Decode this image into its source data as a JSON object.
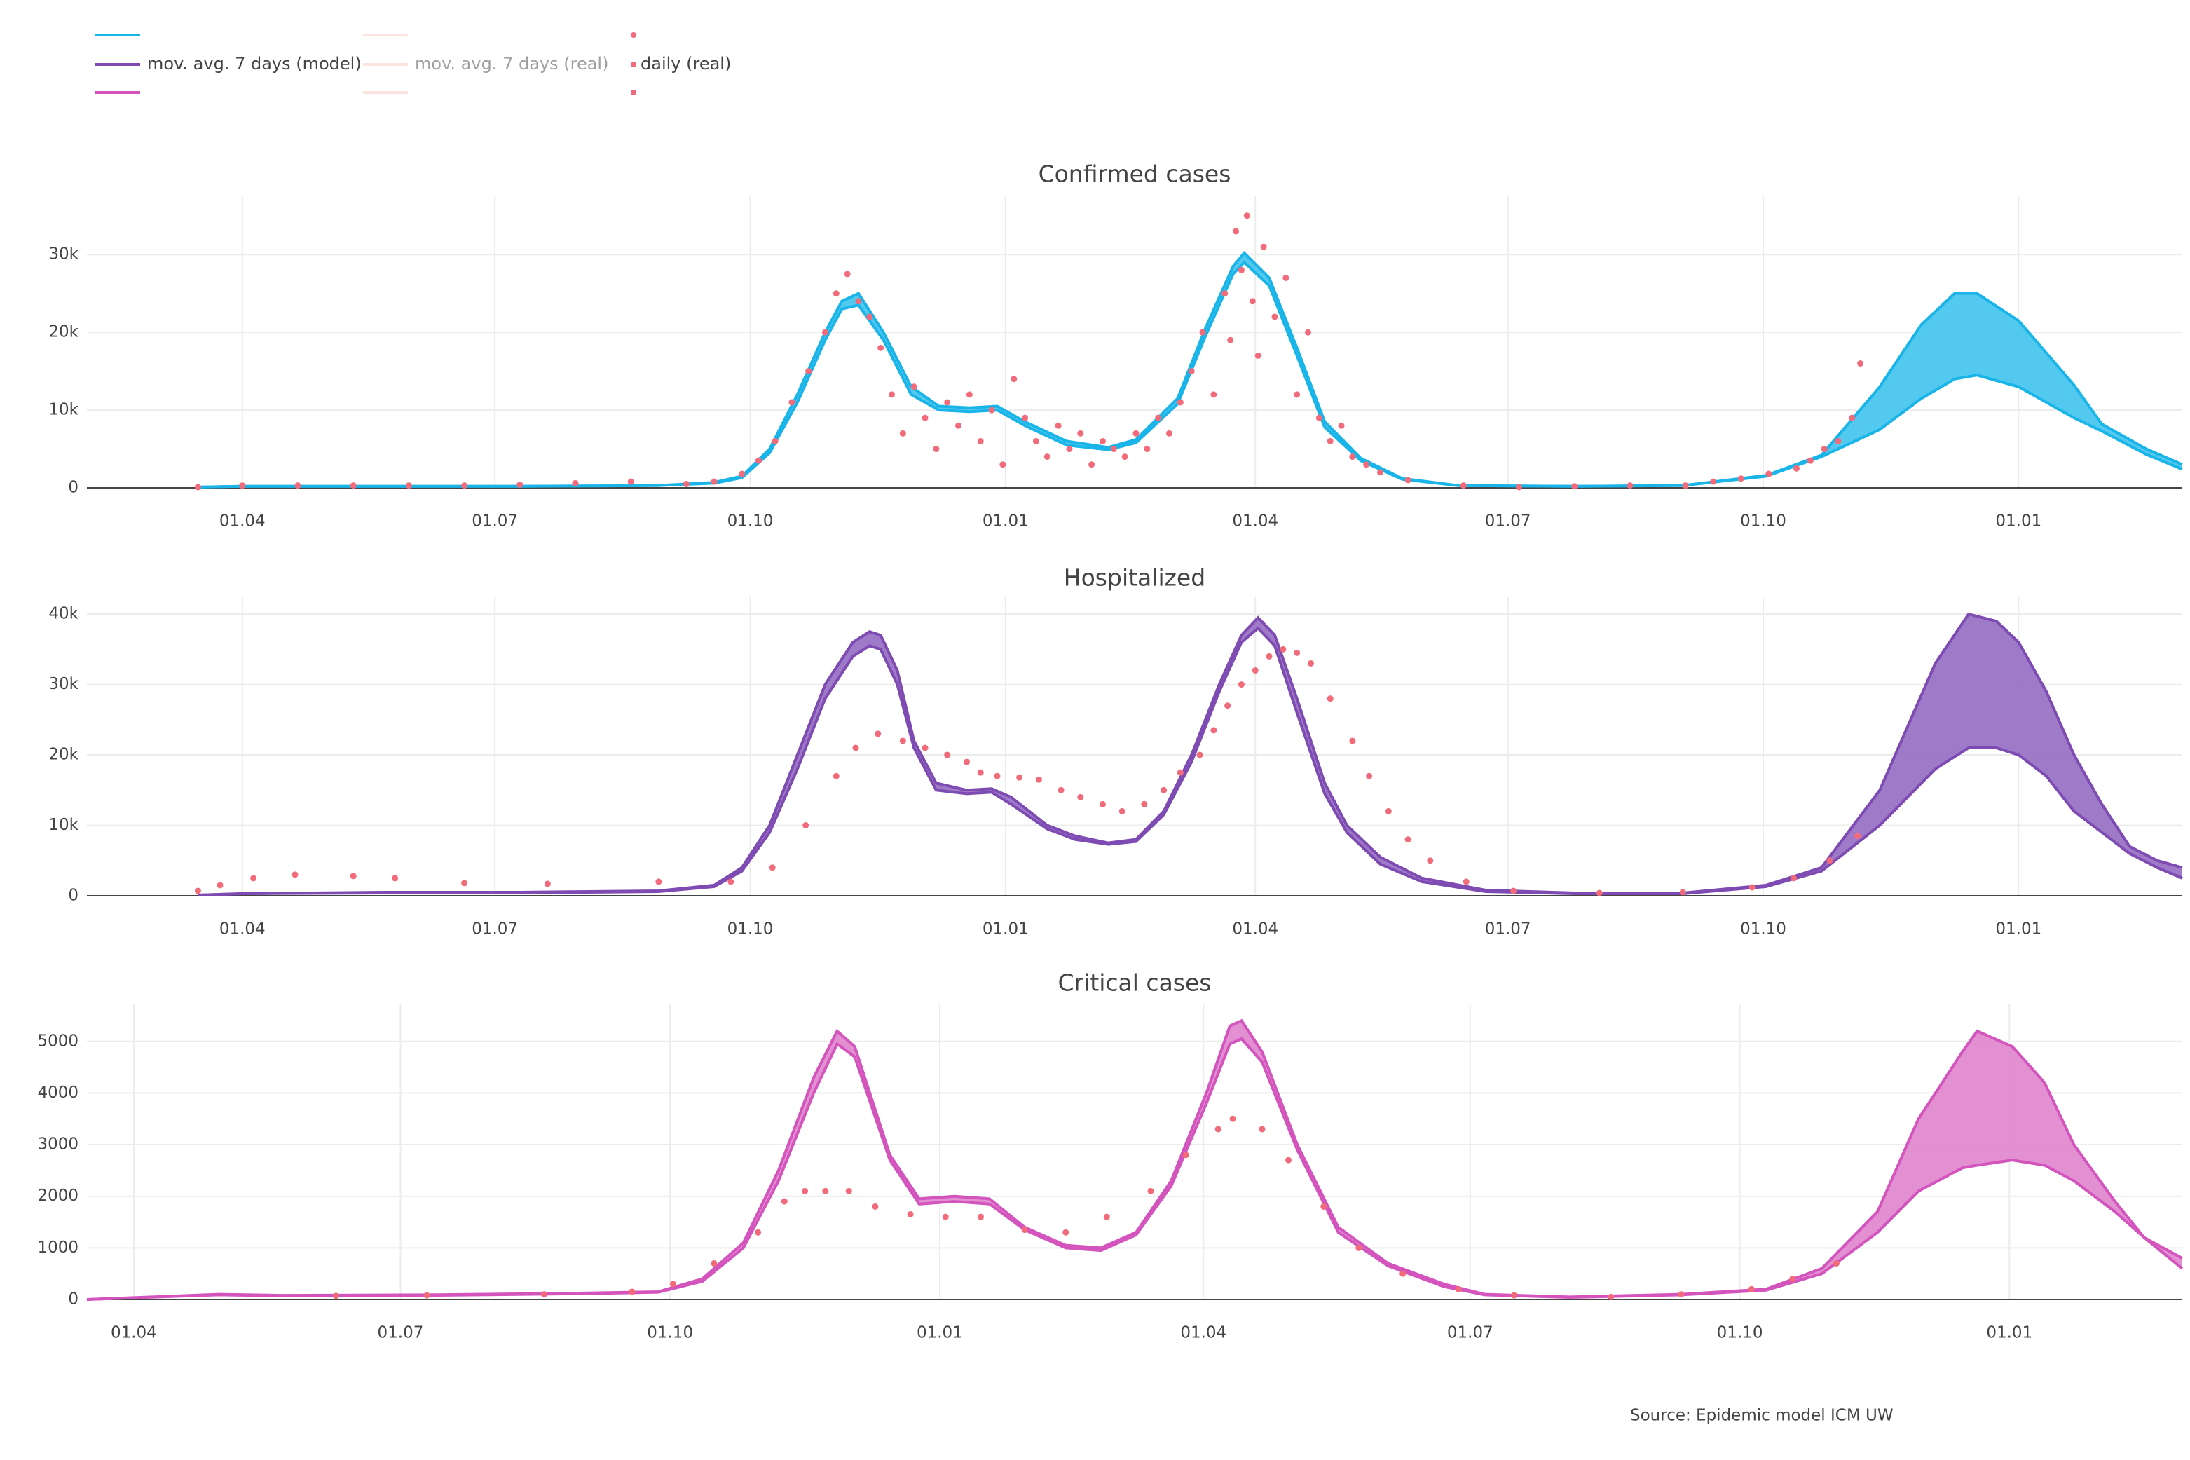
{
  "legend": [
    {
      "name": "mov. avg. 7 days (model)",
      "style": "line",
      "colors": [
        "#1ab5e8",
        "#7e4bb2",
        "#d454be"
      ]
    },
    {
      "name": "mov. avg. 7 days (real)",
      "style": "line",
      "hidden": true,
      "colors": [
        "#f8c8c0",
        "#f8c8c0",
        "#f8c8c0"
      ]
    },
    {
      "name": "daily (real)",
      "style": "dot",
      "colors": [
        "#f26b7a",
        "#f26b7a",
        "#f26b7a"
      ]
    }
  ],
  "source": "Source: Epidemic model ICM UW",
  "chart_data": [
    {
      "type": "band",
      "title": "Confirmed cases",
      "grid": true,
      "xlim": [
        -56,
        699
      ],
      "xticks": [
        {
          "value": 0,
          "label": "01.04"
        },
        {
          "value": 91,
          "label": "01.07"
        },
        {
          "value": 183,
          "label": "01.10"
        },
        {
          "value": 275,
          "label": "01.01"
        },
        {
          "value": 365,
          "label": "01.04"
        },
        {
          "value": 456,
          "label": "01.07"
        },
        {
          "value": 548,
          "label": "01.10"
        },
        {
          "value": 640,
          "label": "01.01"
        }
      ],
      "ylim": [
        0,
        37500
      ],
      "yticks": [
        0,
        {
          "value": 10000,
          "label": "10k"
        },
        {
          "value": 20000,
          "label": "20k"
        },
        {
          "value": 30000,
          "label": "30k"
        }
      ],
      "series": [
        {
          "type": "band",
          "color": "#1ab5e8",
          "fill": "#4ac6ee",
          "x": [
            -16,
            0,
            50,
            100,
            150,
            170,
            180,
            190,
            200,
            210,
            216,
            222,
            231,
            241,
            251,
            262,
            272,
            282,
            297,
            312,
            322,
            337,
            347,
            357,
            361,
            370,
            380,
            390,
            403,
            418,
            438,
            480,
            519,
            549,
            569,
            590,
            605,
            617,
            625,
            640,
            660,
            670,
            686,
            699
          ],
          "values": [
            100,
            200,
            200,
            200,
            300,
            700,
            1500,
            5000,
            12000,
            20000,
            24000,
            25000,
            20000,
            13000,
            10500,
            10300,
            10500,
            8500,
            6000,
            5200,
            6200,
            11500,
            20500,
            28500,
            30200,
            27000,
            18000,
            8500,
            3800,
            1200,
            300,
            200,
            300,
            1600,
            4200,
            13000,
            21000,
            25000,
            25000,
            21500,
            13200,
            8200,
            5000,
            3000
          ],
          "lower": [
            100,
            200,
            200,
            200,
            300,
            600,
            1300,
            4500,
            11000,
            19000,
            23000,
            23500,
            19000,
            12000,
            10000,
            9800,
            10000,
            8000,
            5500,
            4900,
            5800,
            10800,
            19500,
            27500,
            29000,
            26000,
            17000,
            7800,
            3500,
            1100,
            300,
            200,
            300,
            1500,
            4000,
            7500,
            11500,
            14000,
            14500,
            13000,
            9000,
            7300,
            4300,
            2400
          ]
        },
        {
          "type": "scatter",
          "color": "#f26b7a",
          "x": [
            -16,
            0,
            20,
            40,
            60,
            80,
            100,
            120,
            140,
            160,
            170,
            180,
            186,
            192,
            198,
            204,
            210,
            214,
            218,
            222,
            226,
            230,
            234,
            238,
            242,
            246,
            250,
            254,
            258,
            262,
            266,
            270,
            274,
            278,
            282,
            286,
            290,
            294,
            298,
            302,
            306,
            310,
            314,
            318,
            322,
            326,
            330,
            334,
            338,
            342,
            346,
            350,
            354,
            356,
            358,
            360,
            362,
            364,
            366,
            368,
            372,
            376,
            380,
            384,
            388,
            392,
            396,
            400,
            405,
            410,
            420,
            440,
            460,
            480,
            500,
            520,
            530,
            540,
            550,
            560,
            565,
            570,
            575,
            580,
            583
          ],
          "values": [
            100,
            300,
            300,
            300,
            300,
            300,
            400,
            600,
            800,
            500,
            800,
            1800,
            3500,
            6000,
            11000,
            15000,
            20000,
            25000,
            27500,
            24000,
            22000,
            18000,
            12000,
            7000,
            13000,
            9000,
            5000,
            11000,
            8000,
            12000,
            6000,
            10000,
            3000,
            14000,
            9000,
            6000,
            4000,
            8000,
            5000,
            7000,
            3000,
            6000,
            5000,
            4000,
            7000,
            5000,
            9000,
            7000,
            11000,
            15000,
            20000,
            12000,
            25000,
            19000,
            33000,
            28000,
            35000,
            24000,
            17000,
            31000,
            22000,
            27000,
            12000,
            20000,
            9000,
            6000,
            8000,
            4000,
            3000,
            2000,
            1000,
            300,
            100,
            200,
            300,
            300,
            800,
            1200,
            1800,
            2500,
            3500,
            5000,
            6000,
            9000,
            16000
          ]
        }
      ]
    },
    {
      "type": "band",
      "title": "Hospitalized",
      "grid": true,
      "xlim": [
        -56,
        699
      ],
      "xticks": [
        {
          "value": 0,
          "label": "01.04"
        },
        {
          "value": 91,
          "label": "01.07"
        },
        {
          "value": 183,
          "label": "01.10"
        },
        {
          "value": 275,
          "label": "01.01"
        },
        {
          "value": 365,
          "label": "01.04"
        },
        {
          "value": 456,
          "label": "01.07"
        },
        {
          "value": 548,
          "label": "01.10"
        },
        {
          "value": 640,
          "label": "01.01"
        }
      ],
      "ylim": [
        0,
        42400
      ],
      "yticks": [
        0,
        {
          "value": 10000,
          "label": "10k"
        },
        {
          "value": 20000,
          "label": "20k"
        },
        {
          "value": 30000,
          "label": "30k"
        },
        {
          "value": 40000,
          "label": "40k"
        }
      ],
      "series": [
        {
          "type": "band",
          "color": "#7e4bb2",
          "fill": "#9a73c5",
          "x": [
            -16,
            0,
            50,
            100,
            150,
            170,
            180,
            190,
            200,
            210,
            220,
            226,
            230,
            236,
            242,
            250,
            261,
            270,
            277,
            290,
            300,
            312,
            322,
            332,
            342,
            352,
            360,
            366,
            372,
            380,
            390,
            398,
            410,
            425,
            448,
            480,
            519,
            549,
            569,
            590,
            600,
            610,
            622,
            632,
            640,
            650,
            660,
            670,
            680,
            690,
            699
          ],
          "values": [
            100,
            300,
            500,
            500,
            700,
            1500,
            4000,
            10000,
            20000,
            30000,
            36000,
            37500,
            37000,
            32000,
            22000,
            16000,
            15000,
            15200,
            14000,
            10000,
            8500,
            7500,
            8000,
            12000,
            20000,
            30000,
            37000,
            39500,
            37000,
            28000,
            16000,
            10000,
            5500,
            2500,
            800,
            400,
            400,
            1500,
            4000,
            15000,
            24000,
            33000,
            40000,
            39000,
            36000,
            29000,
            20000,
            13000,
            7000,
            5000,
            4000
          ],
          "lower": [
            100,
            300,
            400,
            400,
            600,
            1300,
            3500,
            9000,
            18000,
            28000,
            34000,
            35500,
            35000,
            30000,
            21000,
            15000,
            14500,
            14700,
            13000,
            9500,
            8000,
            7300,
            7700,
            11500,
            19000,
            29000,
            36000,
            38000,
            35500,
            26000,
            14500,
            9000,
            4500,
            2000,
            600,
            300,
            300,
            1300,
            3500,
            10000,
            14000,
            18000,
            21000,
            21000,
            20000,
            17000,
            12000,
            9000,
            6000,
            4000,
            2500
          ]
        },
        {
          "type": "scatter",
          "color": "#f26b7a",
          "x": [
            -16,
            -8,
            4,
            19,
            40,
            55,
            80,
            110,
            150,
            176,
            191,
            203,
            214,
            221,
            229,
            238,
            246,
            254,
            261,
            266,
            272,
            280,
            287,
            295,
            302,
            310,
            317,
            325,
            332,
            338,
            345,
            350,
            355,
            360,
            365,
            370,
            375,
            380,
            385,
            392,
            400,
            406,
            413,
            420,
            428,
            441,
            458,
            489,
            519,
            544,
            559,
            572,
            582
          ],
          "values": [
            700,
            1500,
            2500,
            3000,
            2800,
            2500,
            1800,
            1700,
            2000,
            2000,
            4000,
            10000,
            17000,
            21000,
            23000,
            22000,
            21000,
            20000,
            19000,
            17500,
            17000,
            16800,
            16500,
            15000,
            14000,
            13000,
            12000,
            13000,
            15000,
            17500,
            20000,
            23500,
            27000,
            30000,
            32000,
            34000,
            35000,
            34500,
            33000,
            28000,
            22000,
            17000,
            12000,
            8000,
            5000,
            2000,
            700,
            400,
            500,
            1200,
            2500,
            5000,
            8500
          ]
        }
      ]
    },
    {
      "type": "band",
      "title": "Critical cases",
      "grid": true,
      "xlim": [
        -16,
        699
      ],
      "xticks": [
        {
          "value": 0,
          "label": "01.04"
        },
        {
          "value": 91,
          "label": "01.07"
        },
        {
          "value": 183,
          "label": "01.10"
        },
        {
          "value": 275,
          "label": "01.01"
        },
        {
          "value": 365,
          "label": "01.04"
        },
        {
          "value": 456,
          "label": "01.07"
        },
        {
          "value": 548,
          "label": "01.10"
        },
        {
          "value": 640,
          "label": "01.01"
        }
      ],
      "ylim": [
        0,
        5730
      ],
      "yticks": [
        0,
        1000,
        2000,
        3000,
        4000,
        5000
      ],
      "series": [
        {
          "type": "band",
          "color": "#d454be",
          "fill": "#e08ad0",
          "x": [
            -16,
            29,
            50,
            100,
            150,
            179,
            194,
            208,
            220,
            232,
            240,
            246,
            258,
            268,
            280,
            292,
            304,
            318,
            330,
            342,
            354,
            366,
            374,
            378,
            385,
            397,
            411,
            428,
            447,
            461,
            490,
            528,
            557,
            576,
            595,
            609,
            624,
            629,
            641,
            652,
            662,
            676,
            686,
            699
          ],
          "values": [
            0,
            100,
            80,
            90,
            120,
            150,
            400,
            1100,
            2500,
            4300,
            5200,
            4900,
            2800,
            1950,
            2000,
            1950,
            1400,
            1050,
            1000,
            1300,
            2300,
            4000,
            5300,
            5400,
            4800,
            3000,
            1400,
            700,
            300,
            100,
            50,
            100,
            200,
            600,
            1700,
            3500,
            4800,
            5200,
            4900,
            4200,
            3000,
            1900,
            1200,
            800
          ],
          "lower": [
            0,
            90,
            70,
            80,
            110,
            140,
            350,
            1000,
            2300,
            4000,
            4950,
            4700,
            2700,
            1850,
            1900,
            1850,
            1350,
            1000,
            950,
            1250,
            2200,
            3800,
            4950,
            5050,
            4600,
            2900,
            1300,
            650,
            250,
            90,
            40,
            90,
            180,
            500,
            1300,
            2100,
            2550,
            2600,
            2700,
            2600,
            2300,
            1700,
            1200,
            600
          ]
        },
        {
          "type": "scatter",
          "color": "#f26b7a",
          "x": [
            69,
            100,
            140,
            170,
            184,
            198,
            213,
            222,
            229,
            236,
            244,
            253,
            265,
            277,
            289,
            304,
            318,
            332,
            347,
            359,
            370,
            375,
            385,
            394,
            406,
            418,
            433,
            452,
            471,
            504,
            528,
            552,
            566,
            581
          ],
          "values": [
            70,
            80,
            100,
            150,
            300,
            700,
            1300,
            1900,
            2100,
            2100,
            2100,
            1800,
            1650,
            1600,
            1600,
            1350,
            1300,
            1600,
            2100,
            2800,
            3300,
            3500,
            3300,
            2700,
            1800,
            1000,
            500,
            200,
            80,
            50,
            100,
            200,
            400,
            700
          ]
        }
      ]
    }
  ]
}
